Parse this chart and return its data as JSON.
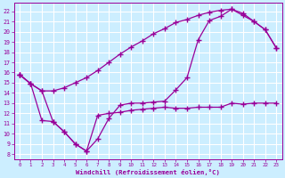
{
  "xlabel": "Windchill (Refroidissement éolien,°C)",
  "bg_color": "#cceeff",
  "line_color": "#990099",
  "grid_color": "#ffffff",
  "xlim": [
    -0.5,
    23.5
  ],
  "ylim": [
    7.5,
    22.8
  ],
  "xticks": [
    0,
    1,
    2,
    3,
    4,
    5,
    6,
    7,
    8,
    9,
    10,
    11,
    12,
    13,
    14,
    15,
    16,
    17,
    18,
    19,
    20,
    21,
    22,
    23
  ],
  "yticks": [
    8,
    9,
    10,
    11,
    12,
    13,
    14,
    15,
    16,
    17,
    18,
    19,
    20,
    21,
    22
  ],
  "line1_x": [
    0,
    1,
    2,
    3,
    4,
    5,
    6,
    7,
    8,
    9,
    10,
    11,
    12,
    13,
    14,
    15,
    16,
    17,
    18,
    19,
    20,
    21,
    22,
    23
  ],
  "line1_y": [
    15.8,
    14.9,
    14.2,
    14.2,
    14.5,
    15.0,
    15.5,
    16.2,
    17.0,
    17.8,
    18.5,
    19.1,
    19.8,
    20.3,
    20.9,
    21.2,
    21.6,
    21.9,
    22.1,
    22.2,
    21.8,
    21.0,
    20.2,
    18.4
  ],
  "line2_x": [
    0,
    1,
    2,
    3,
    4,
    5,
    6,
    7,
    8,
    9,
    10,
    11,
    12,
    13,
    14,
    15,
    16,
    17,
    18,
    19,
    20,
    21,
    22,
    23
  ],
  "line2_y": [
    15.8,
    14.9,
    14.2,
    11.2,
    10.2,
    9.0,
    8.3,
    9.5,
    11.5,
    12.8,
    13.0,
    13.0,
    13.1,
    13.2,
    14.3,
    15.5,
    19.2,
    21.1,
    21.5,
    22.2,
    21.6,
    21.0,
    20.2,
    18.4
  ],
  "line3_x": [
    0,
    1,
    2,
    3,
    4,
    5,
    6,
    7,
    8,
    9,
    10,
    11,
    12,
    13,
    14,
    15,
    16,
    17,
    18,
    19,
    20,
    21,
    22,
    23
  ],
  "line3_y": [
    15.8,
    14.9,
    11.3,
    11.2,
    10.2,
    9.0,
    8.3,
    11.8,
    12.0,
    12.1,
    12.3,
    12.4,
    12.5,
    12.6,
    12.5,
    12.5,
    12.6,
    12.6,
    12.6,
    13.0,
    12.9,
    13.0,
    13.0,
    13.0
  ],
  "marker": "+",
  "marker_size": 4,
  "linewidth": 0.9
}
